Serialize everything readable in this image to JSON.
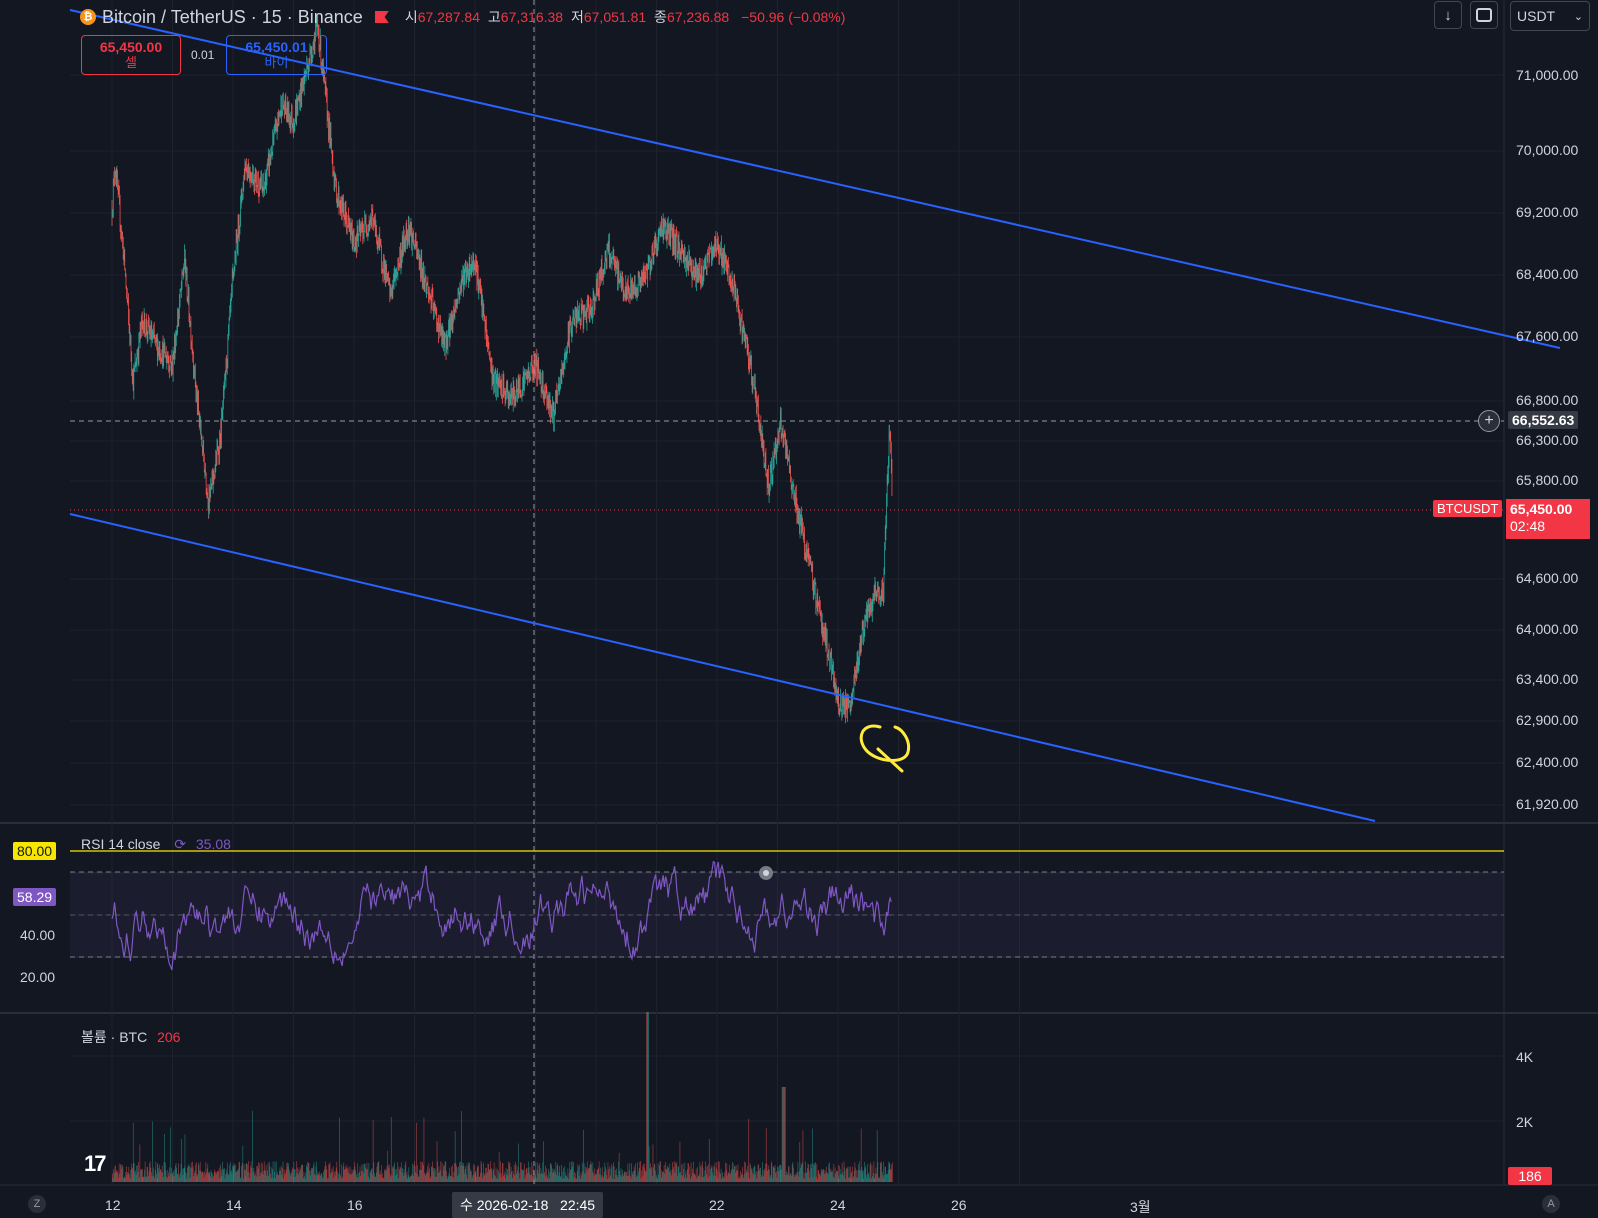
{
  "header": {
    "symbol_title": "Bitcoin / TetherUS · 15 · Binance",
    "ohlc": [
      {
        "label": "시",
        "value": "67,287.84"
      },
      {
        "label": "고",
        "value": "67,316.38"
      },
      {
        "label": "저",
        "value": "67,051.81"
      },
      {
        "label": "종",
        "value": "67,236.88"
      }
    ],
    "change": "−50.96 (−0.08%)"
  },
  "trade": {
    "sell_price": "65,450.00",
    "sell_label": "셀",
    "spread": "0.01",
    "buy_price": "65,450.01",
    "buy_label": "바이"
  },
  "toolbar": {
    "currency": "USDT",
    "icons": [
      "arrow-down-icon",
      "fullscreen-icon",
      "chevron-down-icon"
    ]
  },
  "price_axis": {
    "ticks": [
      "71,000.00",
      "70,000.00",
      "69,200.00",
      "68,400.00",
      "67,600.00",
      "66,800.00",
      "66,300.00",
      "65,800.00",
      "64,600.00",
      "64,000.00",
      "63,400.00",
      "62,900.00",
      "62,400.00",
      "61,920.00"
    ],
    "crosshair_price": "66,552.63",
    "symbol_badge": "BTCUSDT",
    "last_price": "65,450.00",
    "countdown": "02:48"
  },
  "rsi": {
    "label": "RSI 14 close",
    "value": "35.08",
    "current_badge": "58.29",
    "upper_badge": "80.00",
    "ticks": [
      "40.00",
      "20.00"
    ]
  },
  "volume": {
    "label": "볼륨 · BTC",
    "value": "206",
    "ticks": [
      "4K",
      "2K"
    ],
    "current_badge": "186"
  },
  "time_axis": {
    "ticks": [
      "12",
      "14",
      "16",
      "22",
      "24",
      "26",
      "3월"
    ],
    "crosshair_label": "수 2026-02-18   22:45",
    "left_corner": "Z",
    "right_corner": "A"
  },
  "colors": {
    "background": "#131722",
    "up": "#26a69a",
    "down": "#ef5350",
    "channel": "#2962ff",
    "rsi_line": "#7e57c2",
    "annotation": "#ffeb3b",
    "last_price": "#f23645"
  },
  "chart_data": {
    "type": "candlestick",
    "symbol": "BTCUSDT",
    "interval": "15",
    "y_range": [
      61700,
      71200
    ],
    "price_path": [
      [
        12,
        68800
      ],
      [
        12.05,
        69300
      ],
      [
        12.2,
        68200
      ],
      [
        12.35,
        66800
      ],
      [
        12.5,
        67500
      ],
      [
        12.75,
        67200
      ],
      [
        13,
        67000
      ],
      [
        13.2,
        68200
      ],
      [
        13.4,
        66600
      ],
      [
        13.6,
        65400
      ],
      [
        13.8,
        66200
      ],
      [
        14,
        68000
      ],
      [
        14.2,
        69300
      ],
      [
        14.5,
        69000
      ],
      [
        14.8,
        70000
      ],
      [
        15,
        69800
      ],
      [
        15.4,
        70900
      ],
      [
        15.7,
        69000
      ],
      [
        16,
        68400
      ],
      [
        16.3,
        68700
      ],
      [
        16.6,
        67800
      ],
      [
        16.9,
        68600
      ],
      [
        17.2,
        67900
      ],
      [
        17.5,
        67200
      ],
      [
        17.8,
        68000
      ],
      [
        18,
        68200
      ],
      [
        18.3,
        66800
      ],
      [
        18.6,
        66600
      ],
      [
        19,
        67000
      ],
      [
        19.3,
        66400
      ],
      [
        19.6,
        67500
      ],
      [
        19.9,
        67600
      ],
      [
        20.2,
        68300
      ],
      [
        20.5,
        67800
      ],
      [
        20.8,
        68000
      ],
      [
        21.1,
        68600
      ],
      [
        21.4,
        68300
      ],
      [
        21.7,
        68000
      ],
      [
        22,
        68400
      ],
      [
        22.3,
        67800
      ],
      [
        22.6,
        66800
      ],
      [
        22.85,
        65600
      ],
      [
        23.05,
        66300
      ],
      [
        23.3,
        65400
      ],
      [
        23.55,
        64600
      ],
      [
        23.8,
        63800
      ],
      [
        24,
        63100
      ],
      [
        24.2,
        63000
      ],
      [
        24.4,
        63900
      ],
      [
        24.6,
        64300
      ],
      [
        24.75,
        64400
      ],
      [
        24.85,
        66300
      ],
      [
        24.9,
        65450
      ]
    ],
    "channel_upper": {
      "from": [
        11.4,
        71600
      ],
      "to": [
        27.3,
        67500
      ]
    },
    "channel_lower": {
      "from": [
        11.4,
        65200
      ],
      "to": [
        24.4,
        61700
      ]
    },
    "rsi_levels": {
      "upper": 80,
      "middle": 50,
      "lower": 30
    },
    "rsi_value": 35.08,
    "volume_last": 206
  }
}
